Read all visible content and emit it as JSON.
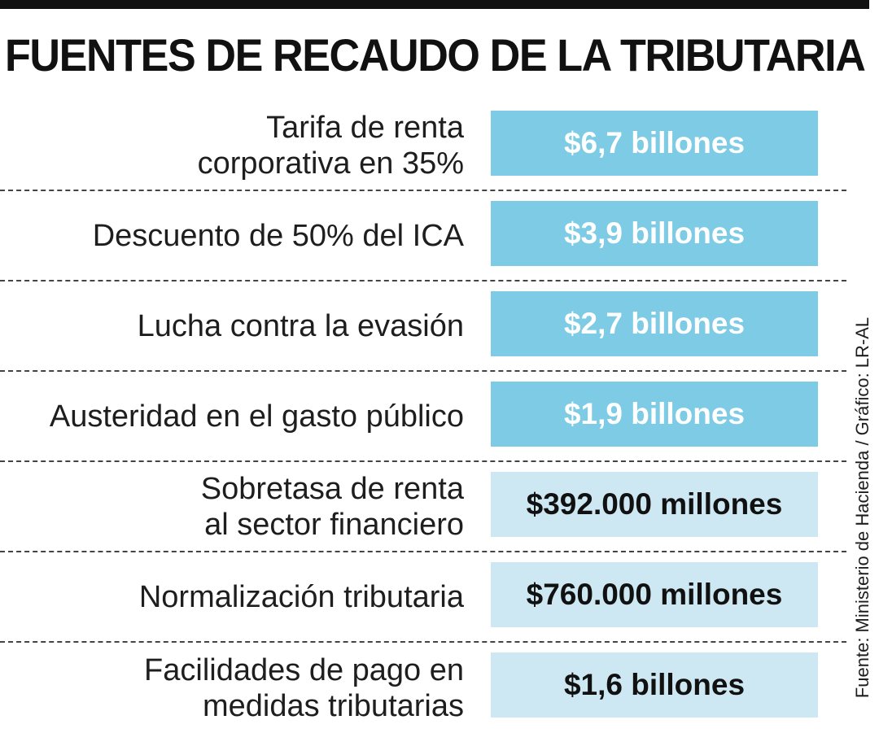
{
  "title": "FUENTES DE RECAUDO DE LA TRIBUTARIA",
  "rows": [
    {
      "label_lines": [
        "Tarifa de renta",
        "corporativa en 35%"
      ],
      "value": "$6,7 billones",
      "style": "dark"
    },
    {
      "label_lines": [
        "Descuento de 50% del ICA"
      ],
      "value": "$3,9 billones",
      "style": "dark"
    },
    {
      "label_lines": [
        "Lucha contra la evasión"
      ],
      "value": "$2,7 billones",
      "style": "dark"
    },
    {
      "label_lines": [
        "Austeridad en el gasto público"
      ],
      "value": "$1,9 billones",
      "style": "dark"
    },
    {
      "label_lines": [
        "Sobretasa de renta",
        "al sector financiero"
      ],
      "value": "$392.000 millones",
      "style": "light"
    },
    {
      "label_lines": [
        "Normalización tributaria"
      ],
      "value": "$760.000 millones",
      "style": "light"
    },
    {
      "label_lines": [
        "Facilidades de pago en",
        "medidas tributarias"
      ],
      "value": "$1,6 billones",
      "style": "light"
    }
  ],
  "source": "Fuente: Ministerio de Hacienda / Gráfico: LR-AL",
  "colors": {
    "dark_box": "#7dcbe4",
    "light_box": "#cde8f2",
    "rule": "#111111"
  }
}
